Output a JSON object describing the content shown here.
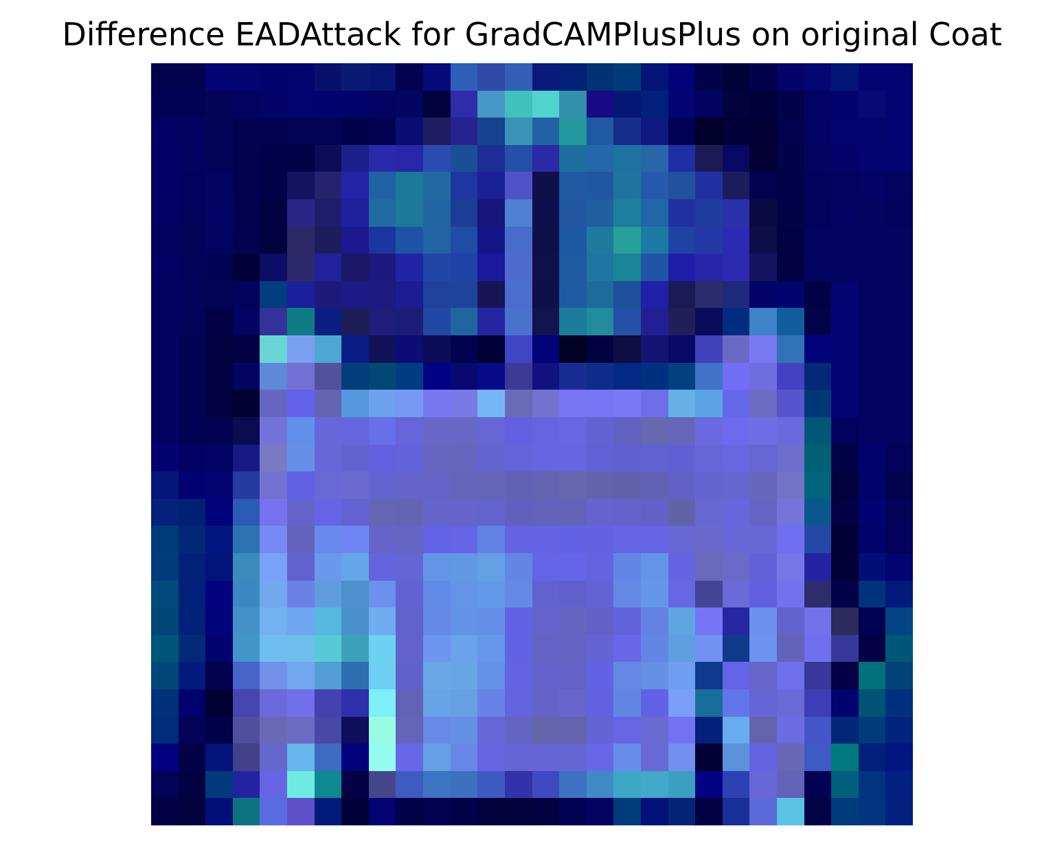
{
  "title": "Difference EADAttack for GradCAMPlusPlus on original Coat",
  "image": {
    "grid_cols": 28,
    "grid_rows": 28,
    "rows": [
      [
        "#02024f",
        "#02024f",
        "#030373",
        "#040472",
        "#03036f",
        "#040471",
        "#07116d",
        "#0a1a74",
        "#071675",
        "#020250",
        "#070a7a",
        "#2e5fb8",
        "#2f4aa5",
        "#335fb5",
        "#0a1a7a",
        "#002178",
        "#003276",
        "#003a7a",
        "#031577",
        "#030378",
        "#02024a",
        "#01013a",
        "#02024a",
        "#03036b",
        "#040673",
        "#031576",
        "#030373",
        "#030373"
      ],
      [
        "#020254",
        "#020254",
        "#030358",
        "#030361",
        "#030368",
        "#030371",
        "#03036f",
        "#03036c",
        "#030363",
        "#040463",
        "#02023f",
        "#2e2ca7",
        "#4798c7",
        "#42c0bb",
        "#50d3ce",
        "#3390ad",
        "#170a84",
        "#051773",
        "#01207b",
        "#030373",
        "#020261",
        "#02023f",
        "#01013a",
        "#020248",
        "#030363",
        "#030370",
        "#070a74",
        "#030373"
      ],
      [
        "#020265",
        "#020260",
        "#030358",
        "#020251",
        "#020250",
        "#030353",
        "#030356",
        "#02024b",
        "#020250",
        "#0c0d73",
        "#1f1d60",
        "#25228f",
        "#17428f",
        "#3b93b8",
        "#2162a4",
        "#23999d",
        "#1f59a4",
        "#172e8a",
        "#0f187e",
        "#020254",
        "#01012a",
        "#010138",
        "#010136",
        "#02024e",
        "#030363",
        "#040470",
        "#040470",
        "#030373"
      ],
      [
        "#020266",
        "#020260",
        "#030358",
        "#02024e",
        "#02024b",
        "#020248",
        "#0d0d57",
        "#1a1f8a",
        "#2a2bab",
        "#2727a8",
        "#2a4cb2",
        "#1b4f95",
        "#1c2e95",
        "#264fa9",
        "#2a2aa4",
        "#1d6fa0",
        "#2268aa",
        "#1e72a0",
        "#2866aa",
        "#1f2ea2",
        "#1c1b55",
        "#090963",
        "#010134",
        "#020248",
        "#030360",
        "#03036a",
        "#040470",
        "#030373"
      ],
      [
        "#020265",
        "#02025e",
        "#030362",
        "#02024f",
        "#020248",
        "#141360",
        "#25236e",
        "#2424a8",
        "#2062a4",
        "#1c7998",
        "#216aa1",
        "#1d36a1",
        "#1a2096",
        "#4f53c7",
        "#0f1049",
        "#2059a1",
        "#1f57a0",
        "#1e749f",
        "#2459ab",
        "#22519d",
        "#2330a2",
        "#1c1c5e",
        "#020250",
        "#020249",
        "#03035d",
        "#030362",
        "#040465",
        "#030360"
      ],
      [
        "#020262",
        "#02025c",
        "#030363",
        "#02024e",
        "#020243",
        "#2a2686",
        "#1f1e6c",
        "#1f209d",
        "#1f6ba2",
        "#1d7997",
        "#2064a2",
        "#1b3e94",
        "#171679",
        "#4e82d0",
        "#0f0f4e",
        "#2157a1",
        "#205da1",
        "#1d7e9d",
        "#2166a7",
        "#2230a0",
        "#1e3b9e",
        "#2a30a9",
        "#0b0b43",
        "#020246",
        "#02025d",
        "#030363",
        "#030360",
        "#03035e"
      ],
      [
        "#020261",
        "#020259",
        "#030361",
        "#020251",
        "#020240",
        "#2b2a67",
        "#1e1d5c",
        "#1e1890",
        "#1b369d",
        "#1e52a6",
        "#2163a3",
        "#1e4ca6",
        "#141688",
        "#476ccb",
        "#0f1049",
        "#1d58a4",
        "#1f7b9e",
        "#27a09a",
        "#1c7ba4",
        "#1f43a5",
        "#2338a4",
        "#2a2ab3",
        "#0d0d49",
        "#020242",
        "#030360",
        "#030360",
        "#030360",
        "#030360"
      ],
      [
        "#020262",
        "#02025b",
        "#020254",
        "#01013a",
        "#0d0d65",
        "#2b296a",
        "#22209c",
        "#1a1867",
        "#1d197e",
        "#2124a4",
        "#1f46a5",
        "#1d43a6",
        "#1b189c",
        "#4e6acc",
        "#11114a",
        "#1e59a2",
        "#1f75a1",
        "#1a8597",
        "#2055a6",
        "#1e1da8",
        "#2826a8",
        "#2b2ab0",
        "#141460",
        "#020243",
        "#030361",
        "#030360",
        "#030361",
        "#030360"
      ],
      [
        "#020261",
        "#02025a",
        "#030355",
        "#03035e",
        "#023d7f",
        "#1a1f9c",
        "#1e1a7a",
        "#1d1a87",
        "#1d1a80",
        "#1d1c93",
        "#1f429c",
        "#1e449a",
        "#161556",
        "#4b6dcd",
        "#0f1049",
        "#1f5ba4",
        "#1d6a9d",
        "#1d4f9a",
        "#2020a8",
        "#1a1a57",
        "#2b2c6c",
        "#1f2a7d",
        "#030368",
        "#03036f",
        "#020246",
        "#030371",
        "#030361",
        "#030361"
      ],
      [
        "#020261",
        "#02025a",
        "#020244",
        "#030362",
        "#343399",
        "#0d7c85",
        "#0a1e83",
        "#1e1e57",
        "#1f1d79",
        "#1c1c79",
        "#2048a4",
        "#1f66a0",
        "#2525a1",
        "#4a72cd",
        "#131350",
        "#1b7d99",
        "#228c9c",
        "#2451a6",
        "#201f94",
        "#201f5a",
        "#0b0b5c",
        "#012d80",
        "#3f83c8",
        "#115d9d",
        "#030349",
        "#030373",
        "#030361",
        "#030361"
      ],
      [
        "#020261",
        "#020254",
        "#020240",
        "#020244",
        "#6ad6d4",
        "#7a9ef1",
        "#4ca8d2",
        "#0c1c86",
        "#111158",
        "#0d0c77",
        "#0c0c56",
        "#020250",
        "#010138",
        "#3f46c4",
        "#020279",
        "#010124",
        "#020240",
        "#0d0d42",
        "#141473",
        "#080866",
        "#4042b9",
        "#6a69c6",
        "#7979f4",
        "#3073b6",
        "#02027a",
        "#030373",
        "#030361",
        "#030361"
      ],
      [
        "#020261",
        "#020254",
        "#020240",
        "#030362",
        "#5e8ad9",
        "#7271d3",
        "#51519e",
        "#033e7b",
        "#024875",
        "#003c82",
        "#020284",
        "#080870",
        "#070a87",
        "#3d3a95",
        "#111180",
        "#192c94",
        "#0e2c8a",
        "#022a84",
        "#00317f",
        "#03407f",
        "#4073c6",
        "#726ef5",
        "#6e6ee0",
        "#4441c3",
        "#042977",
        "#030373",
        "#030361",
        "#030361"
      ],
      [
        "#020261",
        "#020254",
        "#020240",
        "#020233",
        "#6666c1",
        "#6462ea",
        "#6464b3",
        "#5598de",
        "#6ea1ee",
        "#7599f1",
        "#7878f2",
        "#7a7ae6",
        "#75b7f6",
        "#6a6bb7",
        "#7272cf",
        "#7777f4",
        "#7777f5",
        "#7979f6",
        "#6e6eea",
        "#65b1e6",
        "#5aa3e5",
        "#6668ea",
        "#6c6cc3",
        "#5755cb",
        "#003777",
        "#030373",
        "#030361",
        "#030361"
      ],
      [
        "#020261",
        "#020254",
        "#020250",
        "#0b0b51",
        "#7374da",
        "#6190ea",
        "#6766da",
        "#6767dd",
        "#6770e9",
        "#6665d9",
        "#6767c5",
        "#6767c5",
        "#6667d4",
        "#6161e2",
        "#6565e2",
        "#6767e2",
        "#6262d4",
        "#6262c0",
        "#6868b0",
        "#6767ba",
        "#6b6ae1",
        "#6b6bec",
        "#6e6ee2",
        "#6a6add",
        "#015776",
        "#02025c",
        "#030361",
        "#030361"
      ],
      [
        "#020271",
        "#020262",
        "#030363",
        "#191985",
        "#7a7ac2",
        "#6690e7",
        "#6767da",
        "#6262d1",
        "#6262e1",
        "#6363dc",
        "#6767c1",
        "#6767c0",
        "#6464d1",
        "#6464db",
        "#6565e0",
        "#6666e2",
        "#6161d6",
        "#6060d2",
        "#6161d2",
        "#6060d4",
        "#6666d9",
        "#6767e0",
        "#6666d4",
        "#6e6ecd",
        "#006076",
        "#020247",
        "#02026d",
        "#02025c"
      ],
      [
        "#06177b",
        "#020272",
        "#030372",
        "#253ba2",
        "#7272d1",
        "#6161e6",
        "#6969d6",
        "#6a6ad1",
        "#6464cf",
        "#6565c9",
        "#6565c7",
        "#6565bb",
        "#6565b7",
        "#6262b5",
        "#6363b2",
        "#6666ae",
        "#6363ac",
        "#6262ab",
        "#6262b4",
        "#6161c3",
        "#6565d0",
        "#6666cf",
        "#6767bd",
        "#7272c7",
        "#00647a",
        "#02023e",
        "#02026c",
        "#02024d"
      ],
      [
        "#042279",
        "#011f75",
        "#02027a",
        "#2b5bb4",
        "#7773ef",
        "#6464cb",
        "#6464e5",
        "#6363d3",
        "#6565b4",
        "#6464b2",
        "#6565cc",
        "#6565ca",
        "#6464cf",
        "#6060bf",
        "#6262bb",
        "#6363b7",
        "#6464cc",
        "#6363cb",
        "#6161c6",
        "#6262a9",
        "#6767d1",
        "#6767dc",
        "#6565c3",
        "#7575d9",
        "#08588e",
        "#020244",
        "#020272",
        "#020257"
      ],
      [
        "#003b79",
        "#012777",
        "#021580",
        "#2c74b1",
        "#7789f5",
        "#6363bc",
        "#6889ee",
        "#6f86f2",
        "#6565c9",
        "#6565c4",
        "#6363e6",
        "#6464e5",
        "#6283e6",
        "#6464e3",
        "#6363e3",
        "#6262e5",
        "#6363e2",
        "#6666e4",
        "#6464e5",
        "#6767d5",
        "#6969c9",
        "#6767d7",
        "#6767d4",
        "#6f6ff1",
        "#2448a6",
        "#020237",
        "#02026c",
        "#02025c"
      ],
      [
        "#023c7b",
        "#012078",
        "#02147b",
        "#3b8bbd",
        "#77a2f6",
        "#6262ce",
        "#6a98ea",
        "#64a6e7",
        "#6464e0",
        "#6565d5",
        "#6296e4",
        "#6297e4",
        "#64a0e4",
        "#6386e4",
        "#6565e7",
        "#6565e7",
        "#6464e1",
        "#6286e6",
        "#6395e5",
        "#6464e3",
        "#6a6abd",
        "#6a6ac8",
        "#6262d6",
        "#7676e6",
        "#2323a3",
        "#020237",
        "#020e77",
        "#030371"
      ],
      [
        "#004b7b",
        "#002179",
        "#030380",
        "#3a89c0",
        "#73a7ee",
        "#6b81e5",
        "#609de0",
        "#4d8fcf",
        "#6b90ef",
        "#6262d5",
        "#628be8",
        "#6394e6",
        "#6299e7",
        "#6489e5",
        "#6262ce",
        "#6060cd",
        "#6464d4",
        "#6688e5",
        "#6397e5",
        "#6767e4",
        "#444496",
        "#6a6ad8",
        "#6060e0",
        "#7272ed",
        "#2d2d6c",
        "#020248",
        "#00337c",
        "#021a7c"
      ],
      [
        "#004778",
        "#022279",
        "#02047b",
        "#4391c7",
        "#71b2ef",
        "#6fa6ef",
        "#55b8de",
        "#4891c9",
        "#71acf1",
        "#6262cb",
        "#6389e4",
        "#6393e5",
        "#6590e7",
        "#6262e5",
        "#6464cc",
        "#6464c1",
        "#6161c8",
        "#6363dc",
        "#6382e3",
        "#5ea5e1",
        "#7575f5",
        "#2626a0",
        "#6c91ec",
        "#6363cc",
        "#7272eb",
        "#2b2b5c",
        "#020252",
        "#014584"
      ],
      [
        "#005578",
        "#012a79",
        "#020271",
        "#4294c6",
        "#6fbdf0",
        "#6fbded",
        "#56cad6",
        "#3ea1bc",
        "#6dd2f2",
        "#6262ca",
        "#6c96ee",
        "#6aa2eb",
        "#6598e8",
        "#6262e5",
        "#6464c5",
        "#6464c5",
        "#6464d5",
        "#6767e8",
        "#6286e3",
        "#609ee2",
        "#7293f1",
        "#0f3b8a",
        "#6c93ef",
        "#6363bb",
        "#7070ec",
        "#38389a",
        "#020244",
        "#005676"
      ],
      [
        "#004777",
        "#021a7a",
        "#02024f",
        "#4764c8",
        "#7291e7",
        "#72a8f0",
        "#539ed4",
        "#2d6fb1",
        "#6dcff2",
        "#6161ca",
        "#6aa7e6",
        "#68a6e7",
        "#6393e6",
        "#6363e3",
        "#6363cb",
        "#6363c7",
        "#6262e5",
        "#6688e5",
        "#6591e3",
        "#6e9ef0",
        "#0e3b8b",
        "#6464e6",
        "#6666cb",
        "#7070ec",
        "#38389a",
        "#020244",
        "#00717d",
        "#014278"
      ],
      [
        "#00317a",
        "#02026c",
        "#010133",
        "#4646b0",
        "#6b6ada",
        "#7270e8",
        "#4441b0",
        "#2f2fac",
        "#7df0f7",
        "#6262b6",
        "#67a3e7",
        "#66a0e3",
        "#6782e8",
        "#6464dd",
        "#6464c6",
        "#6666cc",
        "#6262e2",
        "#6486e3",
        "#6262e4",
        "#7b9ef8",
        "#186e9a",
        "#6276eb",
        "#6565d5",
        "#6b6bd8",
        "#3d3db5",
        "#020270",
        "#005372",
        "#00307f"
      ],
      [
        "#012b7b",
        "#020258",
        "#02024a",
        "#4f4f9d",
        "#6969b6",
        "#6c6cc5",
        "#4848a6",
        "#0f0f5c",
        "#98fce3",
        "#6464b9",
        "#668ae6",
        "#6490e6",
        "#6767d8",
        "#6464c1",
        "#6565ac",
        "#6464ae",
        "#6464d4",
        "#6767e3",
        "#6a6ad4",
        "#7373f1",
        "#02207c",
        "#67acef",
        "#6464ac",
        "#6b6be2",
        "#4355c7",
        "#022779",
        "#023b7c",
        "#01247d"
      ],
      [
        "#020281",
        "#020247",
        "#041379",
        "#43418a",
        "#6467cc",
        "#67b6ec",
        "#3d6bbf",
        "#02027c",
        "#94fcee",
        "#6767e8",
        "#669fe4",
        "#6687e5",
        "#6565e0",
        "#6565d5",
        "#6565d5",
        "#6565d3",
        "#6767e8",
        "#678eea",
        "#6868d6",
        "#7390f0",
        "#020236",
        "#5c92da",
        "#6464e0",
        "#6767b5",
        "#3e5ac4",
        "#007a7d",
        "#012179",
        "#011680"
      ],
      [
        "#020256",
        "#020242",
        "#003a7c",
        "#2323a0",
        "#6565e4",
        "#6debe0",
        "#0d8990",
        "#020245",
        "#46468c",
        "#3f5bc2",
        "#3c75c1",
        "#3d70c0",
        "#3d5ac2",
        "#3232a9",
        "#3f4ac0",
        "#3c72c0",
        "#3f89c6",
        "#3da8c6",
        "#44a7cc",
        "#3a9fc2",
        "#020282",
        "#2c42b3",
        "#6766d9",
        "#6262b7",
        "#020253",
        "#005f7c",
        "#00347f",
        "#011f7f"
      ],
      [
        "#020245",
        "#02023e",
        "#020f78",
        "#0e7380",
        "#5a6be1",
        "#5f4fc8",
        "#021b7a",
        "#02023a",
        "#030372",
        "#020249",
        "#020250",
        "#02024a",
        "#02023e",
        "#02023c",
        "#020242",
        "#020252",
        "#030362",
        "#003c7c",
        "#01127b",
        "#042478",
        "#020243",
        "#182f98",
        "#5b6ad8",
        "#5bc3e4",
        "#020246",
        "#013b7e",
        "#01357f",
        "#01207d"
      ]
    ]
  }
}
